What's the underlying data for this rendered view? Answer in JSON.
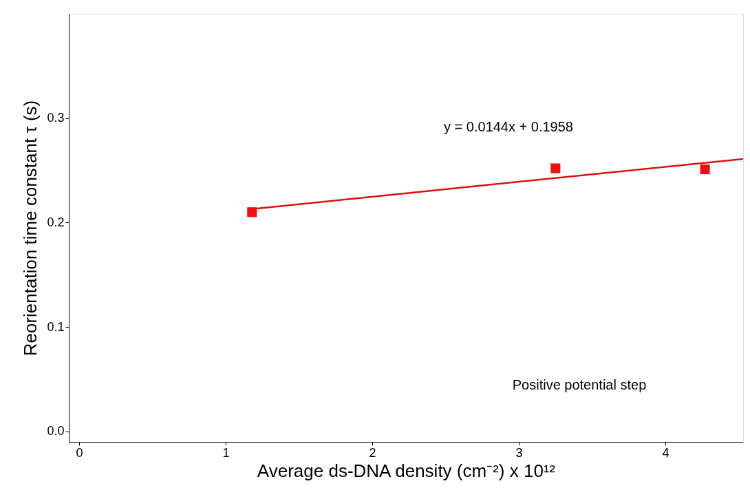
{
  "chart_data": {
    "type": "scatter",
    "xlabel": "Average ds-DNA density (cm⁻²) x 10¹²",
    "ylabel": "Reorientation time constant τ (s)",
    "annotations": [
      "y = 0.0144x + 0.1958",
      "Positive potential step"
    ],
    "xlim": [
      -0.07,
      4.53
    ],
    "ylim": [
      -0.01,
      0.4
    ],
    "xticks": [
      0,
      1,
      2,
      3,
      4
    ],
    "yticks": [
      {
        "value": 0,
        "label": "0.0"
      },
      {
        "value": 0.1,
        "label": "0.1"
      },
      {
        "value": 0.2,
        "label": "0.2"
      },
      {
        "value": 0.3,
        "label": "0.3"
      }
    ],
    "grid": false,
    "series": [
      {
        "marker": "square",
        "color": "#ee1111",
        "x": [
          1.18,
          3.25,
          4.27
        ],
        "values": [
          0.21,
          0.252,
          0.251
        ]
      },
      {
        "type": "line",
        "line_style": "solid",
        "marker": "none",
        "color": "#dd1111",
        "x": [
          1.18,
          4.53
        ],
        "values": [
          0.213,
          0.261
        ]
      }
    ]
  }
}
